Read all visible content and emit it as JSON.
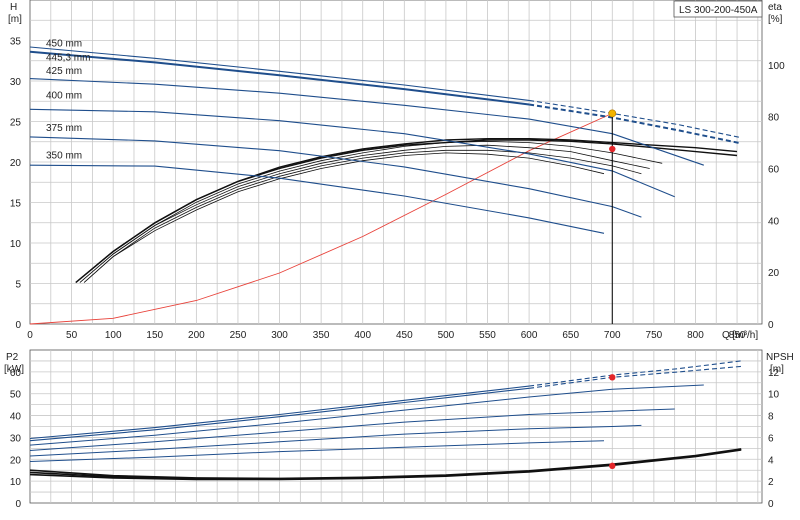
{
  "chart_data": [
    {
      "type": "line",
      "title": "LS 300-200-450A",
      "left_axis": {
        "label_line1": "H",
        "label_line2": "[m]",
        "ylim": [
          0,
          40
        ],
        "ticks": [
          0,
          5,
          10,
          15,
          20,
          25,
          30,
          35
        ]
      },
      "right_axis": {
        "label_line1": "eta",
        "label_line2": "[%]",
        "ylim": [
          0,
          125
        ],
        "ticks": [
          0,
          20,
          40,
          60,
          80,
          100
        ]
      },
      "x_axis": {
        "label": "Q [m³/h]",
        "xlim": [
          0,
          880
        ],
        "ticks": [
          0,
          50,
          100,
          150,
          200,
          250,
          300,
          350,
          400,
          450,
          500,
          550,
          600,
          650,
          700,
          750,
          800,
          850
        ]
      },
      "grid": true,
      "head_series": [
        {
          "name": "450 mm",
          "label_y": 34.0,
          "x": [
            0,
            150,
            300,
            450,
            600,
            700,
            780,
            855
          ],
          "y": [
            34.2,
            32.8,
            31.2,
            29.5,
            27.6,
            26.0,
            24.6,
            23.0
          ]
        },
        {
          "name": "445,3 mm",
          "label_y": 32.3,
          "x": [
            0,
            150,
            300,
            450,
            600,
            700,
            780,
            855
          ],
          "y": [
            33.6,
            32.3,
            30.7,
            29.0,
            27.1,
            25.5,
            23.9,
            22.3
          ]
        },
        {
          "name": "425 mm",
          "label_y": 30.6,
          "x": [
            0,
            150,
            300,
            450,
            600,
            700,
            810
          ],
          "y": [
            30.3,
            29.6,
            28.5,
            27.0,
            25.3,
            23.5,
            19.6
          ]
        },
        {
          "name": "400 mm",
          "label_y": 27.6,
          "x": [
            0,
            150,
            300,
            450,
            600,
            700,
            775
          ],
          "y": [
            26.5,
            26.2,
            25.1,
            23.5,
            21.0,
            18.9,
            15.7
          ]
        },
        {
          "name": "375 mm",
          "label_y": 23.6,
          "x": [
            0,
            150,
            300,
            450,
            600,
            700,
            735
          ],
          "y": [
            23.1,
            22.6,
            21.4,
            19.4,
            16.7,
            14.5,
            13.2
          ]
        },
        {
          "name": "350 mm",
          "label_y": 20.2,
          "x": [
            0,
            150,
            300,
            450,
            600,
            690
          ],
          "y": [
            19.6,
            19.5,
            18.0,
            15.8,
            13.1,
            11.2
          ]
        }
      ],
      "eta_series": [
        {
          "x": [
            55,
            100,
            150,
            200,
            250,
            300,
            350,
            400,
            450,
            500,
            550,
            600,
            650,
            700,
            750,
            800,
            850
          ],
          "y": [
            16,
            28,
            39,
            48,
            55,
            60,
            64,
            67,
            69,
            70,
            71,
            71,
            70.5,
            69.5,
            68,
            66.5,
            65
          ]
        },
        {
          "x": [
            55,
            100,
            150,
            200,
            250,
            300,
            350,
            400,
            450,
            500,
            550,
            600,
            650,
            700,
            750,
            800,
            850
          ],
          "y": [
            16,
            28,
            39,
            48,
            55,
            60.5,
            64.5,
            67.5,
            69.5,
            71,
            71.5,
            71.5,
            71,
            70,
            69,
            68,
            66.5
          ]
        },
        {
          "x": [
            60,
            100,
            150,
            200,
            250,
            300,
            350,
            400,
            450,
            500,
            550,
            600,
            650,
            700,
            760
          ],
          "y": [
            16,
            27,
            38,
            47,
            54,
            59,
            63,
            66,
            68.5,
            70,
            70.5,
            70,
            68.5,
            66,
            62
          ]
        },
        {
          "x": [
            60,
            100,
            150,
            200,
            250,
            300,
            350,
            400,
            450,
            500,
            550,
            600,
            650,
            700,
            745
          ],
          "y": [
            16,
            27,
            38,
            46,
            53,
            58,
            62,
            65,
            67,
            68.5,
            69,
            68,
            66.5,
            63,
            60
          ]
        },
        {
          "x": [
            65,
            100,
            150,
            200,
            250,
            300,
            350,
            400,
            450,
            500,
            550,
            600,
            650,
            700,
            735
          ],
          "y": [
            16,
            26,
            37,
            45,
            52,
            57,
            61,
            64,
            66,
            67,
            67,
            66,
            64,
            61,
            58
          ]
        },
        {
          "x": [
            65,
            100,
            150,
            200,
            250,
            300,
            350,
            400,
            450,
            500,
            550,
            600,
            650,
            690
          ],
          "y": [
            16,
            26,
            36,
            44,
            51,
            56,
            60,
            63,
            65,
            66,
            65.5,
            64,
            61,
            58
          ]
        }
      ],
      "system_curve": {
        "x": [
          0,
          100,
          200,
          300,
          400,
          500,
          600,
          700
        ],
        "y": [
          0,
          0.7,
          2.9,
          6.3,
          10.8,
          16.0,
          21.4,
          26.0
        ]
      },
      "duty_point": {
        "x": 700,
        "head": 26.0,
        "eta": 67.5
      }
    },
    {
      "type": "line",
      "left_axis": {
        "label_line1": "P2",
        "label_line2": "[kW]",
        "ylim": [
          0,
          70
        ],
        "ticks": [
          0,
          10,
          20,
          30,
          40,
          50,
          60
        ]
      },
      "right_axis": {
        "label_line1": "NPSH",
        "label_line2": "[m]",
        "ylim": [
          0,
          14
        ],
        "ticks": [
          0,
          2,
          4,
          6,
          8,
          10,
          12
        ]
      },
      "xlim": [
        0,
        880
      ],
      "grid": true,
      "power_series": [
        {
          "x": [
            0,
            150,
            300,
            450,
            600,
            700,
            780,
            855
          ],
          "y": [
            29.5,
            34.5,
            40.5,
            47.0,
            53.5,
            58.5,
            61.5,
            65.0
          ]
        },
        {
          "x": [
            0,
            150,
            300,
            450,
            600,
            700,
            780,
            855
          ],
          "y": [
            28.5,
            33.5,
            39.5,
            46.0,
            52.5,
            57.5,
            60.0,
            62.5
          ]
        },
        {
          "x": [
            0,
            150,
            300,
            450,
            600,
            700,
            810
          ],
          "y": [
            26.5,
            31.0,
            36.5,
            42.5,
            48.5,
            52.0,
            54.0
          ]
        },
        {
          "x": [
            0,
            150,
            300,
            450,
            600,
            700,
            775
          ],
          "y": [
            24.0,
            28.0,
            32.5,
            37.0,
            40.5,
            42.0,
            43.0
          ]
        },
        {
          "x": [
            0,
            150,
            300,
            450,
            600,
            700,
            735
          ],
          "y": [
            21.5,
            24.5,
            28.0,
            31.5,
            34.0,
            35.0,
            35.5
          ]
        },
        {
          "x": [
            0,
            150,
            300,
            450,
            600,
            690
          ],
          "y": [
            19.0,
            21.0,
            23.5,
            25.5,
            27.5,
            28.5
          ]
        }
      ],
      "npsh_series": [
        {
          "x": [
            0,
            100,
            200,
            300,
            400,
            500,
            600,
            700,
            800,
            855
          ],
          "y": [
            2.8,
            2.4,
            2.2,
            2.2,
            2.3,
            2.5,
            2.9,
            3.5,
            4.3,
            4.9
          ]
        },
        {
          "x": [
            0,
            100,
            200,
            300,
            400,
            500,
            600,
            700,
            800,
            855
          ],
          "y": [
            3.0,
            2.5,
            2.3,
            2.25,
            2.35,
            2.55,
            2.95,
            3.55,
            4.35,
            4.95
          ]
        },
        {
          "x": [
            0,
            100,
            200,
            300,
            400,
            500,
            600,
            700,
            800,
            855
          ],
          "y": [
            2.6,
            2.3,
            2.15,
            2.15,
            2.25,
            2.45,
            2.85,
            3.45,
            4.25,
            4.85
          ]
        }
      ],
      "duty_point": {
        "x": 700,
        "power": 57.5,
        "npsh": 3.4
      }
    }
  ]
}
